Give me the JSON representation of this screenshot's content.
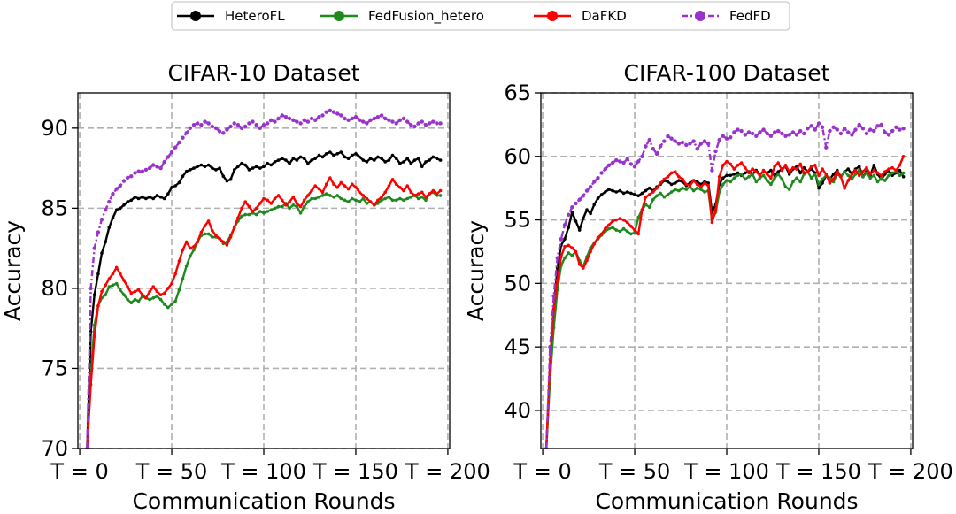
{
  "legend": [
    {
      "label": "HeteroFL",
      "color": "#000000",
      "dash": "",
      "marker": 1.8
    },
    {
      "label": "FedFusion_hetero",
      "color": "#1e8a1e",
      "dash": "",
      "marker": 1.8
    },
    {
      "label": "DaFKD",
      "color": "#ff0000",
      "dash": "",
      "marker": 1.8
    },
    {
      "label": "FedFD",
      "color": "#9933cc",
      "dash": "7,3,2,3",
      "marker": 2.2
    }
  ],
  "chart_data": [
    {
      "type": "line",
      "title": "CIFAR-10 Dataset",
      "xlabel": "Communication Rounds",
      "ylabel": "Accuracy",
      "xlim": [
        -1,
        201
      ],
      "ylim": [
        70,
        92.2
      ],
      "yticks": [
        70,
        75,
        80,
        85,
        90
      ],
      "xticks": [
        0,
        50,
        100,
        150,
        200
      ],
      "xtick_labels": [
        "T = 0",
        "T = 50",
        "T = 100",
        "T = 150",
        "T = 200"
      ],
      "grid": true,
      "x": [
        4,
        6,
        8,
        10,
        12,
        14,
        16,
        18,
        20,
        22,
        24,
        26,
        28,
        30,
        32,
        34,
        36,
        38,
        40,
        42,
        44,
        46,
        48,
        50,
        52,
        54,
        56,
        58,
        60,
        62,
        64,
        66,
        68,
        70,
        72,
        74,
        76,
        78,
        80,
        82,
        84,
        86,
        88,
        90,
        92,
        94,
        96,
        98,
        100,
        102,
        104,
        106,
        108,
        110,
        112,
        114,
        116,
        118,
        120,
        122,
        124,
        126,
        128,
        130,
        132,
        134,
        136,
        138,
        140,
        142,
        144,
        146,
        148,
        150,
        152,
        154,
        156,
        158,
        160,
        162,
        164,
        166,
        168,
        170,
        172,
        174,
        176,
        178,
        180,
        182,
        184,
        186,
        188,
        190,
        192,
        194,
        196
      ],
      "series": [
        {
          "name": "HeteroFL",
          "values": [
            70.0,
            77.3,
            79.6,
            80.9,
            82.2,
            82.9,
            83.8,
            84.4,
            84.9,
            85.0,
            85.2,
            85.4,
            85.5,
            85.7,
            85.6,
            85.7,
            85.6,
            85.7,
            85.6,
            85.8,
            85.7,
            85.6,
            85.9,
            86.3,
            86.4,
            86.6,
            87.0,
            87.3,
            87.4,
            87.5,
            87.6,
            87.7,
            87.6,
            87.7,
            87.5,
            87.4,
            87.5,
            87.0,
            86.7,
            86.8,
            87.4,
            87.6,
            87.8,
            87.7,
            87.4,
            87.5,
            87.6,
            87.5,
            87.6,
            87.8,
            87.7,
            87.9,
            88.0,
            88.1,
            88.0,
            87.8,
            88.1,
            88.0,
            88.2,
            88.1,
            87.8,
            88.0,
            88.1,
            88.3,
            88.2,
            88.4,
            88.5,
            88.3,
            88.4,
            88.5,
            88.2,
            88.1,
            88.3,
            88.4,
            88.2,
            88.0,
            87.9,
            88.1,
            88.0,
            88.2,
            88.1,
            87.9,
            88.0,
            88.3,
            88.1,
            87.8,
            87.9,
            88.1,
            87.8,
            88.0,
            88.1,
            87.6,
            87.9,
            88.0,
            88.2,
            88.1,
            88.0
          ]
        },
        {
          "name": "FedFusion_hetero",
          "values": [
            70.0,
            74.6,
            77.7,
            78.9,
            79.4,
            79.6,
            80.1,
            80.2,
            80.3,
            79.9,
            79.6,
            79.3,
            79.1,
            79.3,
            79.2,
            79.5,
            79.4,
            79.3,
            79.4,
            79.5,
            79.3,
            79.0,
            78.8,
            79.0,
            79.2,
            79.9,
            80.6,
            81.4,
            82.0,
            82.4,
            82.9,
            83.3,
            83.4,
            83.4,
            83.2,
            83.2,
            83.1,
            82.8,
            82.9,
            83.3,
            83.8,
            84.2,
            84.5,
            84.6,
            84.6,
            84.7,
            84.6,
            84.8,
            84.7,
            84.8,
            84.9,
            85.0,
            85.1,
            85.1,
            85.3,
            85.0,
            85.2,
            85.1,
            84.7,
            85.1,
            85.4,
            85.6,
            85.6,
            85.7,
            85.8,
            85.9,
            85.8,
            85.7,
            85.8,
            85.6,
            85.5,
            85.4,
            85.6,
            85.5,
            85.4,
            85.6,
            85.3,
            85.4,
            85.2,
            85.3,
            85.5,
            85.6,
            85.7,
            85.5,
            85.5,
            85.6,
            85.5,
            85.6,
            85.7,
            85.8,
            85.6,
            85.7,
            85.5,
            85.9,
            86.0,
            85.8,
            85.8
          ]
        },
        {
          "name": "DaFKD",
          "values": [
            70.0,
            74.0,
            77.0,
            78.9,
            79.8,
            80.2,
            80.6,
            80.9,
            81.3,
            80.9,
            80.5,
            80.1,
            79.7,
            79.8,
            79.9,
            79.6,
            79.4,
            79.8,
            80.1,
            79.8,
            79.6,
            79.7,
            80.0,
            80.3,
            80.9,
            81.7,
            82.4,
            82.9,
            82.5,
            82.6,
            82.9,
            83.5,
            83.9,
            84.2,
            83.6,
            83.3,
            83.1,
            82.9,
            82.7,
            83.2,
            83.8,
            84.4,
            85.0,
            85.4,
            85.1,
            84.8,
            85.0,
            85.3,
            85.6,
            85.5,
            85.3,
            85.6,
            85.8,
            85.5,
            85.2,
            85.4,
            85.7,
            85.3,
            85.1,
            85.5,
            85.8,
            86.1,
            86.4,
            86.2,
            86.0,
            86.5,
            86.9,
            86.5,
            86.3,
            86.6,
            86.4,
            86.2,
            86.5,
            86.3,
            86.0,
            85.8,
            85.6,
            85.4,
            85.2,
            85.5,
            85.7,
            86.0,
            86.4,
            86.8,
            86.5,
            86.3,
            86.1,
            86.4,
            86.0,
            85.8,
            85.9,
            86.0,
            85.7,
            85.9,
            86.1,
            85.9,
            86.1
          ]
        },
        {
          "name": "FedFD",
          "values": [
            70.0,
            80.0,
            82.5,
            83.5,
            84.3,
            84.9,
            85.4,
            85.9,
            86.2,
            86.4,
            86.7,
            86.9,
            87.0,
            87.2,
            87.3,
            87.3,
            87.4,
            87.5,
            87.7,
            87.6,
            87.5,
            87.9,
            88.2,
            88.5,
            88.8,
            89.1,
            89.4,
            89.7,
            90.0,
            90.2,
            90.3,
            90.2,
            90.4,
            90.3,
            90.1,
            90.0,
            89.8,
            89.7,
            89.9,
            90.1,
            90.3,
            90.2,
            90.0,
            90.1,
            90.3,
            90.4,
            90.2,
            90.0,
            90.2,
            90.3,
            90.5,
            90.4,
            90.6,
            90.8,
            90.7,
            90.6,
            90.5,
            90.4,
            90.3,
            90.5,
            90.4,
            90.6,
            90.5,
            90.7,
            90.8,
            91.0,
            91.1,
            91.0,
            90.9,
            90.8,
            90.6,
            90.5,
            90.6,
            90.7,
            90.5,
            90.4,
            90.3,
            90.5,
            90.6,
            90.7,
            90.8,
            90.6,
            90.5,
            90.4,
            90.3,
            90.5,
            90.6,
            90.4,
            90.2,
            90.1,
            90.3,
            90.4,
            90.2,
            90.3,
            90.4,
            90.3,
            90.3
          ]
        }
      ]
    },
    {
      "type": "line",
      "title": "CIFAR-100 Dataset",
      "xlabel": "Communication Rounds",
      "ylabel": "Accuracy",
      "xlim": [
        -1,
        201
      ],
      "ylim": [
        37,
        65
      ],
      "yticks": [
        40,
        45,
        50,
        55,
        60,
        65
      ],
      "xticks": [
        0,
        50,
        100,
        150,
        200
      ],
      "xtick_labels": [
        "T = 0",
        "T = 50",
        "T = 100",
        "T = 150",
        "T = 200"
      ],
      "grid": true,
      "x": [
        2,
        4,
        6,
        8,
        10,
        12,
        14,
        16,
        18,
        20,
        22,
        24,
        26,
        28,
        30,
        32,
        34,
        36,
        38,
        40,
        42,
        44,
        46,
        48,
        50,
        52,
        54,
        56,
        58,
        60,
        62,
        64,
        66,
        68,
        70,
        72,
        74,
        76,
        78,
        80,
        82,
        84,
        86,
        88,
        90,
        92,
        94,
        96,
        98,
        100,
        102,
        104,
        106,
        108,
        110,
        112,
        114,
        116,
        118,
        120,
        122,
        124,
        126,
        128,
        130,
        132,
        134,
        136,
        138,
        140,
        142,
        144,
        146,
        148,
        150,
        152,
        154,
        156,
        158,
        160,
        162,
        164,
        166,
        168,
        170,
        172,
        174,
        176,
        178,
        180,
        182,
        184,
        186,
        188,
        190,
        192,
        194,
        196
      ],
      "series": [
        {
          "name": "HeteroFL",
          "values": [
            37.0,
            43.5,
            48.0,
            51.2,
            53.0,
            53.5,
            54.4,
            55.6,
            54.9,
            54.2,
            55.1,
            55.8,
            55.5,
            56.2,
            56.7,
            57.0,
            57.2,
            57.4,
            57.3,
            57.2,
            57.3,
            57.1,
            57.2,
            57.1,
            57.0,
            56.9,
            57.1,
            57.3,
            57.5,
            57.3,
            57.6,
            57.8,
            58.1,
            58.0,
            57.8,
            57.9,
            58.1,
            58.0,
            57.7,
            57.9,
            58.1,
            58.0,
            57.8,
            58.0,
            57.9,
            55.6,
            56.2,
            57.8,
            58.3,
            58.5,
            58.5,
            58.6,
            58.7,
            58.5,
            58.7,
            58.8,
            58.6,
            58.9,
            58.6,
            58.8,
            58.7,
            58.9,
            58.5,
            58.8,
            59.0,
            59.2,
            58.6,
            59.0,
            59.2,
            58.7,
            59.1,
            58.8,
            59.0,
            58.7,
            57.5,
            57.9,
            58.5,
            58.2,
            58.6,
            58.9,
            58.4,
            58.8,
            59.0,
            58.6,
            59.0,
            59.2,
            58.4,
            58.8,
            58.5,
            59.3,
            58.6,
            58.2,
            58.6,
            58.9,
            58.5,
            58.7,
            58.9,
            58.4
          ]
        },
        {
          "name": "FedFusion_hetero",
          "values": [
            37.0,
            42.5,
            46.5,
            49.5,
            51.4,
            52.0,
            52.4,
            52.2,
            52.5,
            51.8,
            51.3,
            52.1,
            52.8,
            53.2,
            53.5,
            53.8,
            54.1,
            54.3,
            54.4,
            54.2,
            54.1,
            54.3,
            54.1,
            53.9,
            54.0,
            55.2,
            55.8,
            56.2,
            56.0,
            56.6,
            56.9,
            57.1,
            56.8,
            57.0,
            57.2,
            57.4,
            57.3,
            57.5,
            57.4,
            57.6,
            57.3,
            57.5,
            57.4,
            57.2,
            57.3,
            55.0,
            55.6,
            57.2,
            57.8,
            58.1,
            58.0,
            58.3,
            58.5,
            58.6,
            58.2,
            58.4,
            58.6,
            58.0,
            58.3,
            58.5,
            58.1,
            57.8,
            58.3,
            58.6,
            58.2,
            57.6,
            57.4,
            58.0,
            58.3,
            58.0,
            58.6,
            58.8,
            58.3,
            58.6,
            57.8,
            58.2,
            58.5,
            58.3,
            58.0,
            58.6,
            58.4,
            58.8,
            58.5,
            58.2,
            58.6,
            58.9,
            58.4,
            58.7,
            58.3,
            58.5,
            58.0,
            58.3,
            58.1,
            58.5,
            58.7,
            58.8,
            58.5,
            58.7
          ]
        },
        {
          "name": "DaFKD",
          "values": [
            37.0,
            44.0,
            48.0,
            50.2,
            52.1,
            52.9,
            53.0,
            52.8,
            52.5,
            51.5,
            51.2,
            51.8,
            52.5,
            53.1,
            53.6,
            53.9,
            54.3,
            54.6,
            54.9,
            55.0,
            55.1,
            55.0,
            54.8,
            54.5,
            54.2,
            53.9,
            55.8,
            56.8,
            57.0,
            57.2,
            57.5,
            57.9,
            58.2,
            58.4,
            58.7,
            58.8,
            58.4,
            58.2,
            57.8,
            57.7,
            58.1,
            57.8,
            57.6,
            57.9,
            57.7,
            54.8,
            55.8,
            58.4,
            59.3,
            59.6,
            59.4,
            59.0,
            59.3,
            59.5,
            59.1,
            58.7,
            59.0,
            58.8,
            58.5,
            58.9,
            58.6,
            58.3,
            59.2,
            59.5,
            58.9,
            59.3,
            58.8,
            59.1,
            59.0,
            59.4,
            58.7,
            58.8,
            59.2,
            59.3,
            58.5,
            59.0,
            58.6,
            57.9,
            58.2,
            58.8,
            58.4,
            57.5,
            58.1,
            58.6,
            58.9,
            58.5,
            58.8,
            59.1,
            58.6,
            58.9,
            58.7,
            58.5,
            58.8,
            59.0,
            59.1,
            58.9,
            59.3,
            60.0
          ]
        },
        {
          "name": "FedFD",
          "values": [
            37.0,
            45.0,
            49.0,
            52.0,
            53.5,
            54.6,
            55.4,
            56.0,
            56.3,
            56.6,
            56.9,
            57.3,
            57.6,
            58.0,
            58.3,
            58.7,
            59.0,
            59.3,
            59.5,
            59.7,
            59.6,
            59.5,
            59.8,
            59.4,
            59.2,
            59.6,
            60.0,
            60.8,
            61.3,
            60.6,
            60.2,
            60.8,
            61.2,
            61.6,
            61.4,
            61.2,
            61.0,
            61.1,
            60.9,
            61.0,
            61.2,
            60.6,
            61.0,
            61.2,
            61.0,
            58.9,
            60.4,
            61.3,
            61.6,
            61.4,
            61.5,
            61.9,
            62.1,
            62.0,
            61.7,
            61.9,
            61.8,
            61.6,
            61.9,
            62.1,
            61.8,
            61.6,
            61.9,
            62.0,
            61.8,
            61.6,
            61.7,
            61.9,
            61.7,
            62.0,
            61.8,
            62.2,
            62.4,
            62.1,
            62.6,
            62.3,
            60.7,
            62.0,
            62.3,
            62.1,
            61.8,
            62.2,
            61.9,
            61.7,
            62.1,
            62.5,
            62.2,
            61.8,
            62.1,
            62.0,
            62.4,
            62.5,
            61.9,
            61.7,
            62.0,
            62.3,
            62.1,
            62.2
          ]
        }
      ]
    }
  ]
}
